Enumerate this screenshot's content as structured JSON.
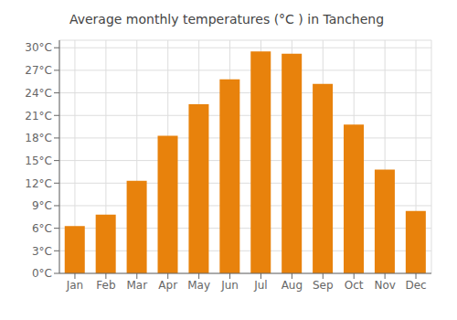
{
  "chart_data": {
    "type": "bar",
    "title": "Average monthly temperatures (°C ) in Tancheng",
    "categories": [
      "Jan",
      "Feb",
      "Mar",
      "Apr",
      "May",
      "Jun",
      "Jul",
      "Aug",
      "Sep",
      "Oct",
      "Nov",
      "Dec"
    ],
    "values": [
      6.3,
      7.8,
      12.3,
      18.3,
      22.5,
      25.8,
      29.5,
      29.2,
      25.2,
      19.8,
      13.8,
      8.3
    ],
    "color": "#E8820C",
    "ylim": [
      0,
      31
    ],
    "yticks": [
      {
        "value": 0,
        "label": "0°C"
      },
      {
        "value": 3,
        "label": "3°C"
      },
      {
        "value": 6,
        "label": "6°C"
      },
      {
        "value": 9,
        "label": "9°C"
      },
      {
        "value": 12,
        "label": "12°C"
      },
      {
        "value": 15,
        "label": "15°C"
      },
      {
        "value": 18,
        "label": "18°C"
      },
      {
        "value": 21,
        "label": "21°C"
      },
      {
        "value": 24,
        "label": "24°C"
      },
      {
        "value": 27,
        "label": "27°C"
      },
      {
        "value": 30,
        "label": "30°C"
      }
    ],
    "grid": true
  }
}
